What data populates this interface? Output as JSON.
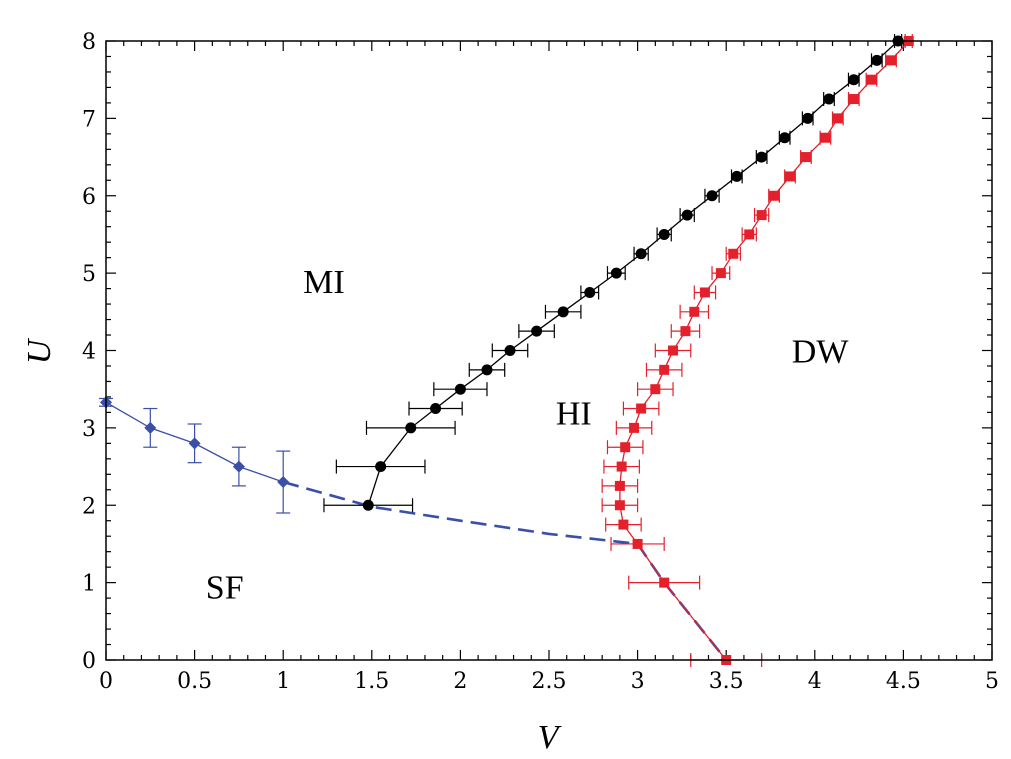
{
  "chart_data": {
    "type": "scatter",
    "xlabel": "V",
    "ylabel": "U",
    "xlim": [
      0,
      5
    ],
    "ylim": [
      0,
      8
    ],
    "x_ticks": [
      "0",
      "0.5",
      "1",
      "1.5",
      "2",
      "2.5",
      "3",
      "3.5",
      "4",
      "4.5",
      "5"
    ],
    "y_ticks": [
      "0",
      "1",
      "2",
      "3",
      "4",
      "5",
      "6",
      "7",
      "8"
    ],
    "grid": false,
    "region_labels": [
      {
        "text": "MI",
        "x": 1.23,
        "y": 4.9
      },
      {
        "text": "HI",
        "x": 2.64,
        "y": 3.2
      },
      {
        "text": "DW",
        "x": 4.03,
        "y": 4.0
      },
      {
        "text": "SF",
        "x": 0.67,
        "y": 0.95
      }
    ],
    "series": [
      {
        "marker": "diamond",
        "color": "#3a4fa8",
        "line": "solid",
        "points": [
          {
            "x": 0.0,
            "y": 3.33,
            "yerr": 0.05
          },
          {
            "x": 0.25,
            "y": 3.0,
            "yerr": 0.25
          },
          {
            "x": 0.5,
            "y": 2.8,
            "yerr": 0.25
          },
          {
            "x": 0.75,
            "y": 2.5,
            "yerr": 0.25
          },
          {
            "x": 1.0,
            "y": 2.3,
            "yerr": 0.4
          }
        ]
      },
      {
        "marker": "none",
        "color": "#3a4fa8",
        "line": "dashed",
        "points": [
          {
            "x": 1.0,
            "y": 2.3
          },
          {
            "x": 1.5,
            "y": 1.98
          },
          {
            "x": 2.0,
            "y": 1.8
          },
          {
            "x": 2.5,
            "y": 1.63
          },
          {
            "x": 3.0,
            "y": 1.5
          },
          {
            "x": 3.15,
            "y": 1.0
          },
          {
            "x": 3.5,
            "y": 0.0
          }
        ]
      },
      {
        "marker": "circle",
        "color": "#000000",
        "line": "solid",
        "points": [
          {
            "x": 1.48,
            "y": 2.0,
            "xerr": 0.25
          },
          {
            "x": 1.55,
            "y": 2.5,
            "xerr": 0.25
          },
          {
            "x": 1.72,
            "y": 3.0,
            "xerr": 0.25
          },
          {
            "x": 1.86,
            "y": 3.25,
            "xerr": 0.15
          },
          {
            "x": 2.0,
            "y": 3.5,
            "xerr": 0.15
          },
          {
            "x": 2.15,
            "y": 3.75,
            "xerr": 0.1
          },
          {
            "x": 2.28,
            "y": 4.0,
            "xerr": 0.1
          },
          {
            "x": 2.43,
            "y": 4.25,
            "xerr": 0.1
          },
          {
            "x": 2.58,
            "y": 4.5,
            "xerr": 0.1
          },
          {
            "x": 2.73,
            "y": 4.75,
            "xerr": 0.05
          },
          {
            "x": 2.88,
            "y": 5.0,
            "xerr": 0.05
          },
          {
            "x": 3.02,
            "y": 5.25,
            "xerr": 0.04
          },
          {
            "x": 3.15,
            "y": 5.5,
            "xerr": 0.04
          },
          {
            "x": 3.28,
            "y": 5.75,
            "xerr": 0.04
          },
          {
            "x": 3.42,
            "y": 6.0,
            "xerr": 0.04
          },
          {
            "x": 3.56,
            "y": 6.25,
            "xerr": 0.03
          },
          {
            "x": 3.7,
            "y": 6.5,
            "xerr": 0.03
          },
          {
            "x": 3.83,
            "y": 6.75,
            "xerr": 0.03
          },
          {
            "x": 3.96,
            "y": 7.0,
            "xerr": 0.03
          },
          {
            "x": 4.08,
            "y": 7.25,
            "xerr": 0.03
          },
          {
            "x": 4.22,
            "y": 7.5,
            "xerr": 0.03
          },
          {
            "x": 4.35,
            "y": 7.75,
            "xerr": 0.03
          },
          {
            "x": 4.47,
            "y": 8.0,
            "xerr": 0.02
          }
        ]
      },
      {
        "marker": "square",
        "color": "#e3202c",
        "line": "solid",
        "points": [
          {
            "x": 3.5,
            "y": 0.0,
            "xerr": 0.2
          },
          {
            "x": 3.15,
            "y": 1.0,
            "xerr": 0.2
          },
          {
            "x": 3.0,
            "y": 1.5,
            "xerr": 0.15
          },
          {
            "x": 2.92,
            "y": 1.75,
            "xerr": 0.1
          },
          {
            "x": 2.9,
            "y": 2.0,
            "xerr": 0.1
          },
          {
            "x": 2.9,
            "y": 2.25,
            "xerr": 0.1
          },
          {
            "x": 2.91,
            "y": 2.5,
            "xerr": 0.1
          },
          {
            "x": 2.93,
            "y": 2.75,
            "xerr": 0.1
          },
          {
            "x": 2.98,
            "y": 3.0,
            "xerr": 0.1
          },
          {
            "x": 3.02,
            "y": 3.25,
            "xerr": 0.1
          },
          {
            "x": 3.1,
            "y": 3.5,
            "xerr": 0.1
          },
          {
            "x": 3.15,
            "y": 3.75,
            "xerr": 0.1
          },
          {
            "x": 3.2,
            "y": 4.0,
            "xerr": 0.1
          },
          {
            "x": 3.27,
            "y": 4.25,
            "xerr": 0.08
          },
          {
            "x": 3.32,
            "y": 4.5,
            "xerr": 0.08
          },
          {
            "x": 3.38,
            "y": 4.75,
            "xerr": 0.06
          },
          {
            "x": 3.47,
            "y": 5.0,
            "xerr": 0.05
          },
          {
            "x": 3.54,
            "y": 5.25,
            "xerr": 0.04
          },
          {
            "x": 3.63,
            "y": 5.5,
            "xerr": 0.04
          },
          {
            "x": 3.7,
            "y": 5.75,
            "xerr": 0.04
          },
          {
            "x": 3.77,
            "y": 6.0,
            "xerr": 0.03
          },
          {
            "x": 3.86,
            "y": 6.25,
            "xerr": 0.03
          },
          {
            "x": 3.95,
            "y": 6.5,
            "xerr": 0.03
          },
          {
            "x": 4.06,
            "y": 6.75,
            "xerr": 0.03
          },
          {
            "x": 4.13,
            "y": 7.0,
            "xerr": 0.03
          },
          {
            "x": 4.22,
            "y": 7.25,
            "xerr": 0.03
          },
          {
            "x": 4.32,
            "y": 7.5,
            "xerr": 0.03
          },
          {
            "x": 4.43,
            "y": 7.75,
            "xerr": 0.03
          },
          {
            "x": 4.53,
            "y": 8.0,
            "xerr": 0.02
          }
        ]
      }
    ]
  }
}
